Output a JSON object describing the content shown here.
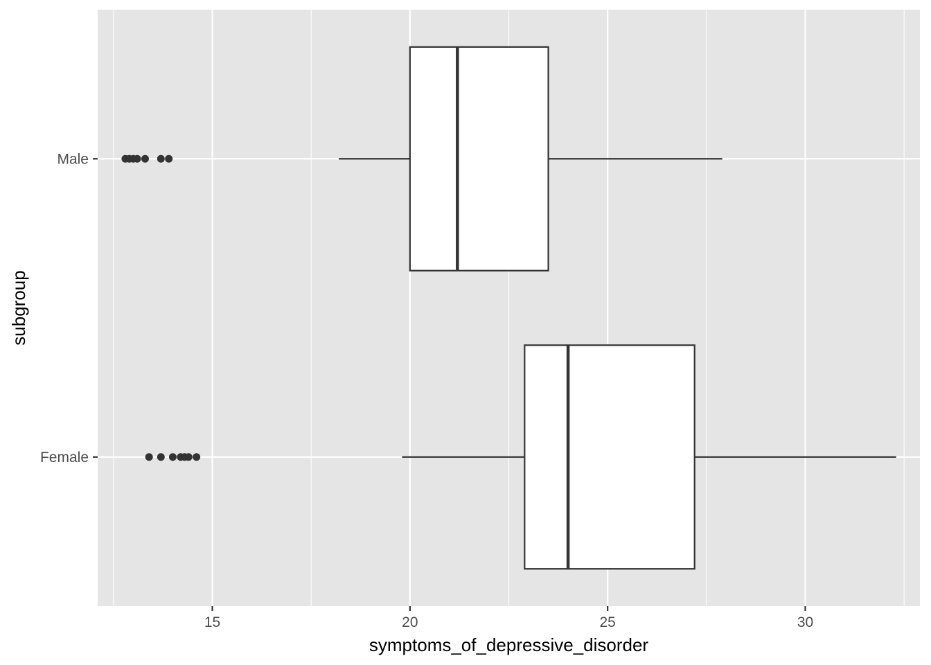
{
  "chart_data": {
    "type": "boxplot",
    "orientation": "horizontal",
    "xlabel": "symptoms_of_depressive_disorder",
    "ylabel": "subgroup",
    "xlim": [
      12.1,
      32.9
    ],
    "x_ticks": [
      15,
      20,
      25,
      30
    ],
    "x_minor_ticks": [
      12.5,
      17.5,
      22.5,
      27.5,
      32.5
    ],
    "grid": true,
    "colors": {
      "panel_background": "#e5e5e5",
      "grid": "#ffffff",
      "box_fill": "#ffffff",
      "box_stroke": "#333333",
      "outlier": "#333333",
      "axis_text": "#4d4d4d"
    },
    "categories": [
      "Male",
      "Female"
    ],
    "boxes": [
      {
        "category": "Male",
        "whisker_low": 18.2,
        "q1": 20.0,
        "median": 21.2,
        "q3": 23.5,
        "whisker_high": 27.9,
        "outliers": [
          12.8,
          12.9,
          13.0,
          13.1,
          13.3,
          13.7,
          13.9
        ]
      },
      {
        "category": "Female",
        "whisker_low": 19.8,
        "q1": 22.9,
        "median": 24.0,
        "q3": 27.2,
        "whisker_high": 32.3,
        "outliers": [
          13.4,
          13.7,
          14.0,
          14.2,
          14.3,
          14.4,
          14.6
        ]
      }
    ]
  }
}
